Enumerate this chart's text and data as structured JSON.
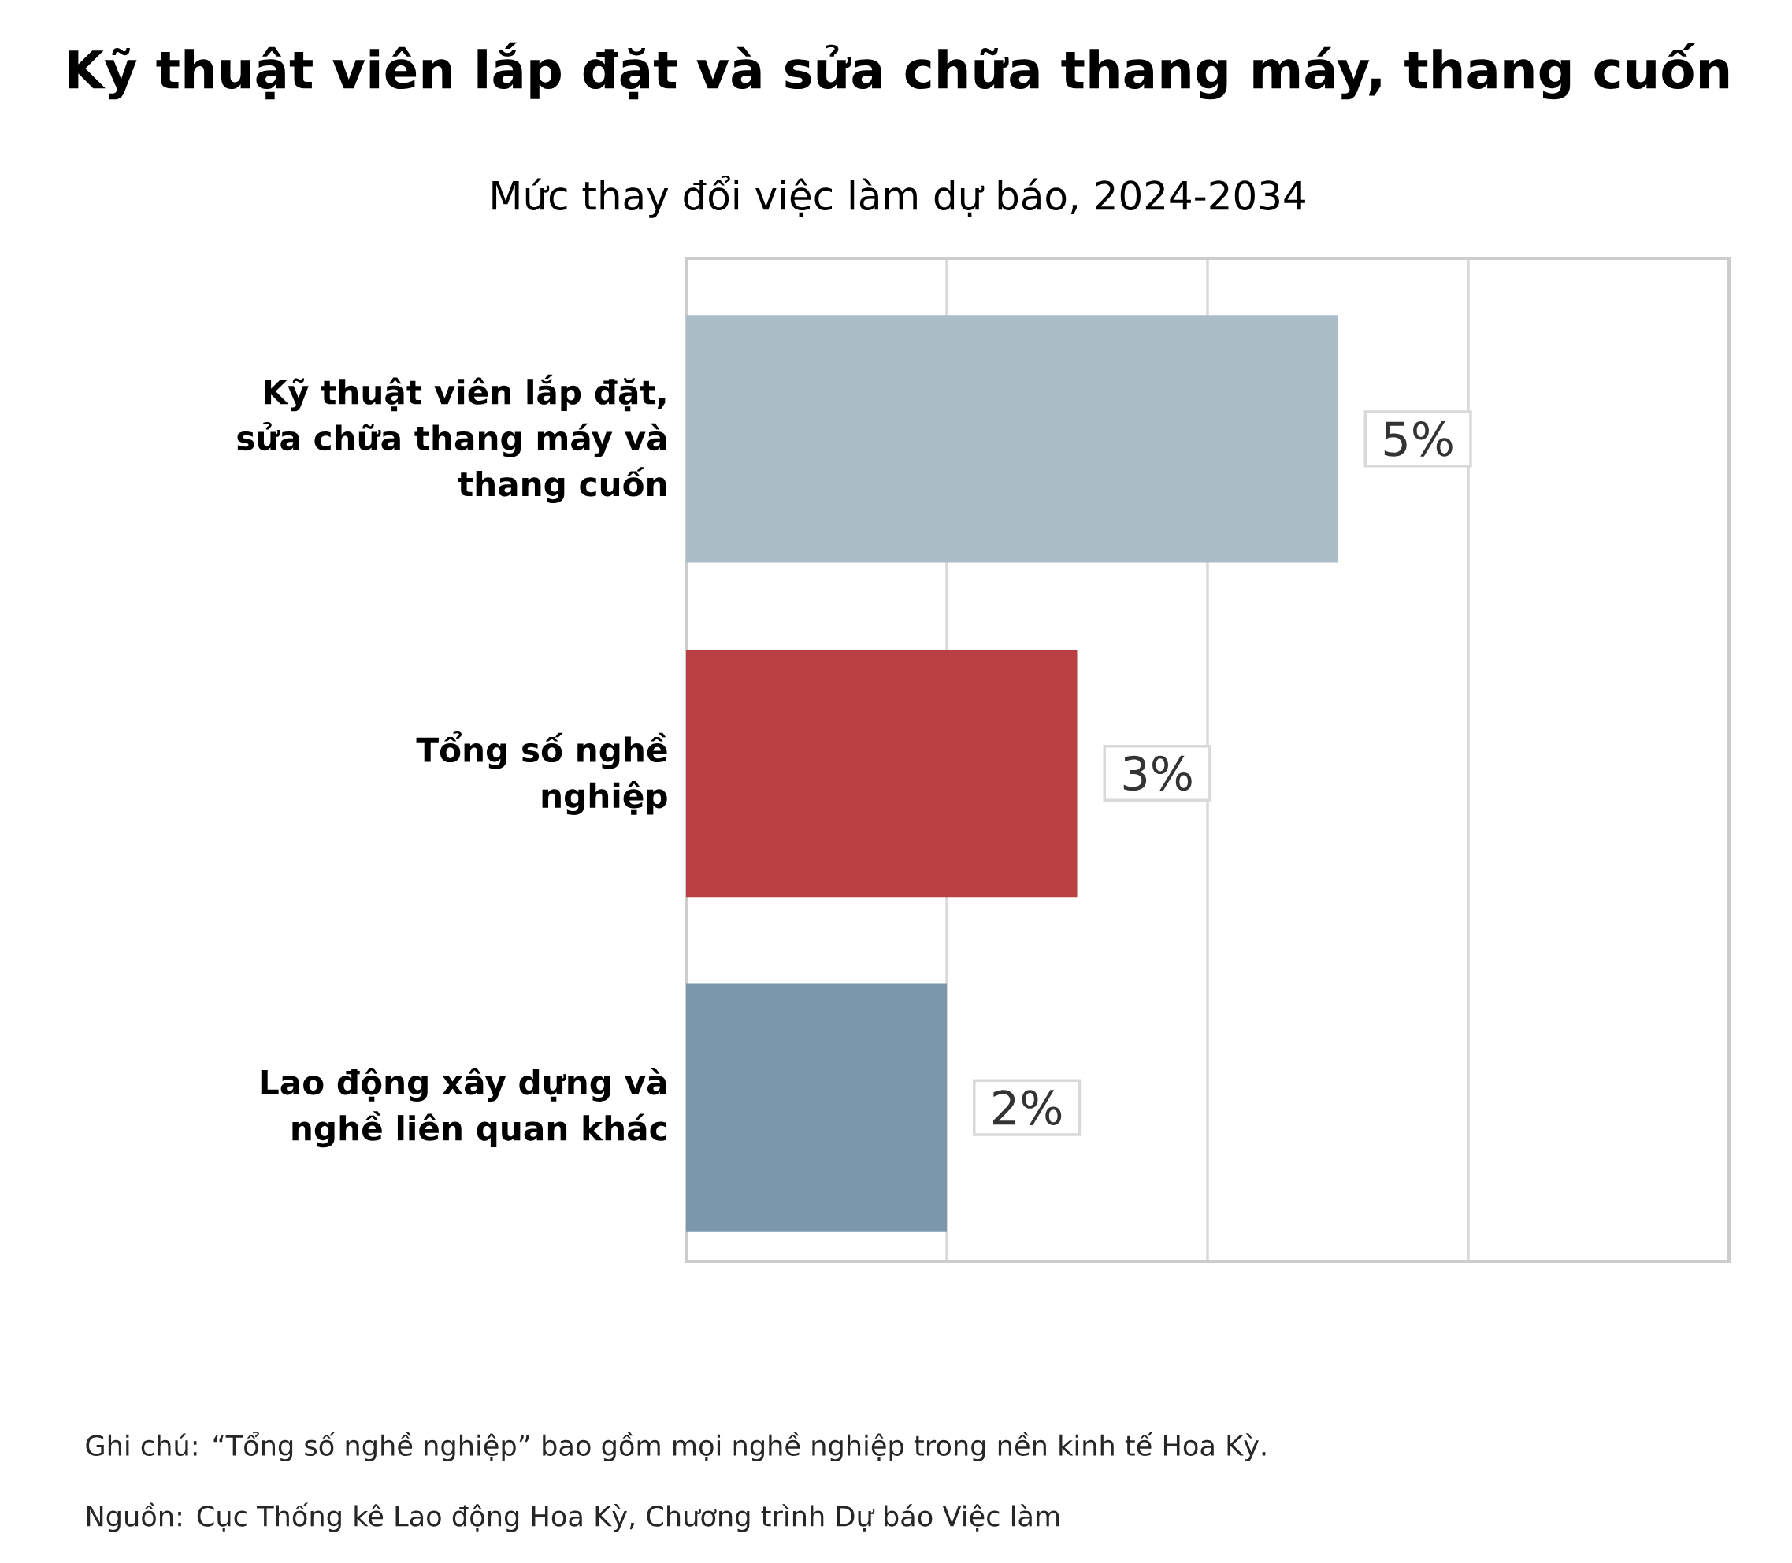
{
  "chart_data": {
    "type": "bar",
    "orientation": "horizontal",
    "title": "Kỹ thuật viên lắp đặt và sửa chữa thang máy, thang cuốn",
    "subtitle": "Mức thay đổi việc làm dự báo, 2024-2034",
    "categories": [
      "Kỹ thuật viên lắp đặt, sửa chữa thang máy và thang cuốn",
      "Tổng số nghề nghiệp",
      "Lao động xây dựng và nghề liên quan khác"
    ],
    "values": [
      5,
      3,
      2
    ],
    "colors": [
      "#adbdc8",
      "#b84042",
      "#7b97ab"
    ],
    "value_labels": [
      "5%",
      "3%",
      "2%"
    ],
    "xlim": [
      0,
      8
    ],
    "xticks": [
      {
        "value": 0,
        "label": null
      },
      {
        "value": 2,
        "label": null
      },
      {
        "value": 4,
        "label": null
      },
      {
        "value": 6,
        "label": null
      },
      {
        "value": 8,
        "label": null
      }
    ],
    "grid": "x",
    "tick_labels": "y",
    "annotations": [
      "Ghi chú: “Tổng số nghề nghiệp” bao gồm mọi nghề nghiệp trong nền kinh tế Hoa Kỳ.",
      "Nguồn: Cục Thống kê Lao động Hoa Kỳ, Chương trình Dự báo Việc làm"
    ]
  }
}
